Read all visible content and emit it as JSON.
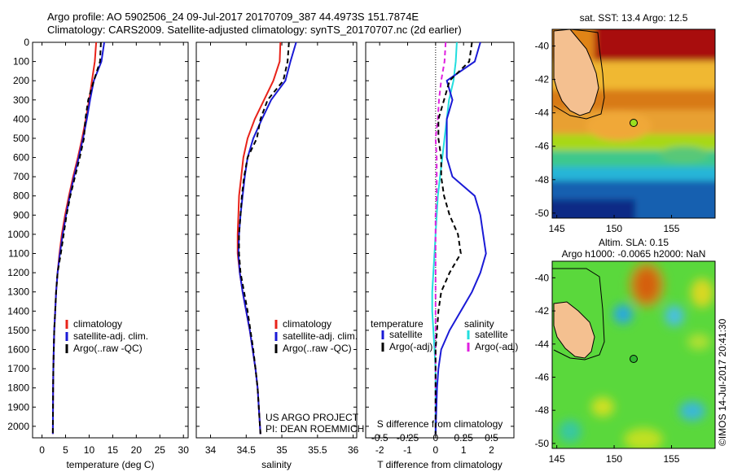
{
  "header": {
    "line1": "Argo profile: AO 5902506_24 09-Jul-2017 20170709_387 44.4973S 151.7874E",
    "line2": "Climatology: CARS2009. Satellite-adjusted climatology: synTS_20170707.nc (2d earlier)"
  },
  "colors": {
    "climatology": "#e8231a",
    "satellite": "#1a1ad6",
    "argo": "#000000",
    "sal_satellite": "#22dede",
    "sal_argo": "#e020e0"
  },
  "panels": {
    "temperature": {
      "xlabel": "temperature (deg C)",
      "xticks": [
        "0",
        "5",
        "10",
        "15",
        "20",
        "25",
        "30"
      ],
      "legend": [
        "climatology",
        "satellite-adj. clim.",
        "Argo(..raw -QC)"
      ]
    },
    "salinity": {
      "xlabel": "salinity",
      "xticks": [
        "34",
        "34.5",
        "35",
        "35.5",
        "36"
      ],
      "legend": [
        "climatology",
        "satellite-adj. clim.",
        "Argo(..raw -QC)"
      ],
      "note1": "US ARGO PROJECT",
      "note2": "PI: DEAN ROEMMICH"
    },
    "difference": {
      "xlabel_bottom": "T difference from climatology",
      "xlabel_top": "S difference from climatology",
      "xticks_bottom": [
        "-2",
        "-1",
        "0",
        "1",
        "2"
      ],
      "xticks_top": [
        "-0.5",
        "-0.25",
        "0",
        "0.25",
        "0.5"
      ],
      "legend_temp_title": "temperature",
      "legend_sal_title": "salinity",
      "legend_temp": [
        "satellite",
        "Argo(-adj)"
      ],
      "legend_sal": [
        "satellite",
        "Argo(-adj)"
      ]
    }
  },
  "depth_ticks": [
    "0",
    "100",
    "200",
    "300",
    "400",
    "500",
    "600",
    "700",
    "800",
    "900",
    "1000",
    "1100",
    "1200",
    "1300",
    "1400",
    "1500",
    "1600",
    "1700",
    "1800",
    "1900",
    "2000"
  ],
  "maps": {
    "sst": {
      "title": "sat. SST: 13.4  Argo: 12.5",
      "lat_ticks": [
        "-40",
        "-42",
        "-44",
        "-46",
        "-48",
        "-50"
      ],
      "lon_ticks": [
        "145",
        "150",
        "155"
      ]
    },
    "sla": {
      "title1": "Altim. SLA: 0.15",
      "title2": "Argo h1000: -0.0065 h2000: NaN",
      "lat_ticks": [
        "-40",
        "-42",
        "-44",
        "-46",
        "-48",
        "-50"
      ],
      "lon_ticks": [
        "145",
        "150",
        "155"
      ]
    }
  },
  "credit": "©IMOS 14-Jul-2017 20:41:30",
  "chart_data": [
    {
      "type": "line",
      "title": "",
      "xlabel": "temperature (deg C)",
      "ylabel": "",
      "xlim": [
        -2,
        31
      ],
      "ylim": [
        2060,
        0
      ],
      "series": [
        {
          "name": "climatology",
          "color": "#e8231a",
          "x": [
            11.5,
            11.2,
            10.6,
            10.0,
            9.3,
            8.5,
            7.6,
            6.6,
            5.7,
            4.9,
            4.2,
            3.7,
            3.3,
            3.0,
            2.8,
            2.6,
            2.5,
            2.4,
            2.35,
            2.3
          ],
          "y": [
            0,
            100,
            200,
            300,
            400,
            500,
            600,
            700,
            800,
            900,
            1000,
            1100,
            1200,
            1300,
            1400,
            1500,
            1600,
            1700,
            1800,
            2040
          ]
        },
        {
          "name": "satellite-adj. clim.",
          "color": "#1a1ad6",
          "x": [
            13.2,
            12.6,
            11.0,
            10.2,
            9.5,
            8.7,
            7.8,
            6.8,
            5.9,
            5.1,
            4.4,
            3.8,
            3.3,
            3.0,
            2.8,
            2.6,
            2.5,
            2.4,
            2.35,
            2.3
          ],
          "y": [
            0,
            100,
            200,
            300,
            400,
            500,
            600,
            700,
            800,
            900,
            1000,
            1100,
            1200,
            1300,
            1400,
            1500,
            1600,
            1700,
            1800,
            2040
          ]
        },
        {
          "name": "Argo(..raw -QC)",
          "color": "#000000",
          "x": [
            12.5,
            12.3,
            11.0,
            9.8,
            9.2,
            8.9,
            8.0,
            7.0,
            6.0,
            5.2,
            4.6,
            4.0,
            3.3,
            3.0,
            2.8,
            2.6,
            2.5,
            2.4,
            2.35,
            2.3
          ],
          "y": [
            0,
            100,
            200,
            300,
            400,
            500,
            600,
            700,
            800,
            900,
            1000,
            1100,
            1200,
            1300,
            1400,
            1500,
            1600,
            1700,
            1800,
            2040
          ]
        }
      ]
    },
    {
      "type": "line",
      "title": "",
      "xlabel": "salinity",
      "ylabel": "",
      "xlim": [
        33.8,
        36.05
      ],
      "ylim": [
        2060,
        0
      ],
      "series": [
        {
          "name": "climatology",
          "color": "#e8231a",
          "x": [
            34.98,
            34.97,
            34.88,
            34.75,
            34.62,
            34.52,
            34.46,
            34.43,
            34.4,
            34.39,
            34.38,
            34.38,
            34.41,
            34.45,
            34.5,
            34.55,
            34.59,
            34.63,
            34.66,
            34.7
          ],
          "y": [
            0,
            100,
            200,
            300,
            400,
            500,
            600,
            700,
            800,
            900,
            1000,
            1100,
            1200,
            1300,
            1400,
            1500,
            1600,
            1700,
            1800,
            2040
          ]
        },
        {
          "name": "satellite-adj. clim.",
          "color": "#1a1ad6",
          "x": [
            35.2,
            35.12,
            35.05,
            34.85,
            34.72,
            34.6,
            34.52,
            34.48,
            34.45,
            34.42,
            34.4,
            34.39,
            34.41,
            34.45,
            34.5,
            34.55,
            34.59,
            34.63,
            34.66,
            34.7
          ],
          "y": [
            0,
            100,
            200,
            300,
            400,
            500,
            600,
            700,
            800,
            900,
            1000,
            1100,
            1200,
            1300,
            1400,
            1500,
            1600,
            1700,
            1800,
            2040
          ]
        },
        {
          "name": "Argo(..raw -QC)",
          "color": "#000000",
          "x": [
            35.1,
            35.08,
            35.02,
            34.8,
            34.7,
            34.65,
            34.52,
            34.47,
            34.44,
            34.42,
            34.4,
            34.4,
            34.42,
            34.47,
            34.52,
            34.56,
            34.6,
            34.63,
            34.66,
            34.7
          ],
          "y": [
            0,
            100,
            200,
            300,
            400,
            500,
            600,
            700,
            800,
            900,
            1000,
            1100,
            1200,
            1300,
            1400,
            1500,
            1600,
            1700,
            1800,
            2040
          ]
        }
      ]
    },
    {
      "type": "line",
      "title": "",
      "xlabel": "T difference from climatology",
      "ylabel": "",
      "xlim": [
        -2.5,
        2.8
      ],
      "ylim": [
        2060,
        0
      ],
      "series": [
        {
          "name": "satellite",
          "color": "#1a1ad6",
          "x": [
            1.6,
            1.4,
            0.4,
            0.6,
            0.4,
            0.4,
            0.4,
            0.6,
            1.4,
            1.6,
            1.7,
            1.8,
            1.6,
            1.3,
            0.9,
            0.5,
            0.2,
            0.1,
            0.05,
            0.0
          ],
          "y": [
            0,
            100,
            200,
            300,
            400,
            500,
            600,
            700,
            800,
            900,
            1000,
            1100,
            1200,
            1300,
            1400,
            1500,
            1600,
            1700,
            1800,
            2040
          ]
        },
        {
          "name": "Argo(-adj)",
          "color": "#000000",
          "x": [
            1.3,
            1.2,
            0.5,
            0.3,
            0.1,
            0.1,
            0.2,
            0.2,
            0.3,
            0.5,
            0.8,
            0.9,
            0.5,
            0.2,
            0.1,
            0.05,
            0.0,
            0.0,
            0.0,
            0.0
          ],
          "y": [
            0,
            100,
            200,
            300,
            400,
            500,
            600,
            700,
            800,
            900,
            1000,
            1100,
            1200,
            1300,
            1400,
            1500,
            1600,
            1700,
            1800,
            2040
          ]
        }
      ]
    },
    {
      "type": "line",
      "title": "",
      "xlabel": "S difference from climatology",
      "ylabel": "",
      "xlim": [
        -0.625,
        0.7
      ],
      "ylim": [
        2060,
        0
      ],
      "series": [
        {
          "name": "satellite",
          "color": "#22dede",
          "x": [
            0.19,
            0.18,
            0.16,
            0.12,
            0.1,
            0.08,
            0.06,
            0.04,
            0.02,
            0.01,
            0.0,
            -0.01,
            -0.02,
            -0.03,
            -0.03,
            -0.02,
            -0.01,
            0.0,
            0.0,
            0.0
          ],
          "y": [
            0,
            100,
            200,
            300,
            400,
            500,
            600,
            700,
            800,
            900,
            1000,
            1100,
            1200,
            1300,
            1400,
            1500,
            1600,
            1700,
            1800,
            2040
          ]
        },
        {
          "name": "Argo(-adj)",
          "color": "#e020e0",
          "x": [
            0.09,
            0.08,
            0.05,
            0.03,
            0.02,
            0.0,
            0.01,
            0.01,
            0.01,
            0.0,
            0.0,
            0.0,
            0.0,
            0.0,
            0.0,
            0.0,
            0.0,
            0.0,
            0.0,
            0.0
          ],
          "y": [
            0,
            100,
            200,
            300,
            400,
            500,
            600,
            700,
            800,
            900,
            1000,
            1100,
            1200,
            1300,
            1400,
            1500,
            1600,
            1700,
            1800,
            2040
          ]
        }
      ]
    }
  ]
}
